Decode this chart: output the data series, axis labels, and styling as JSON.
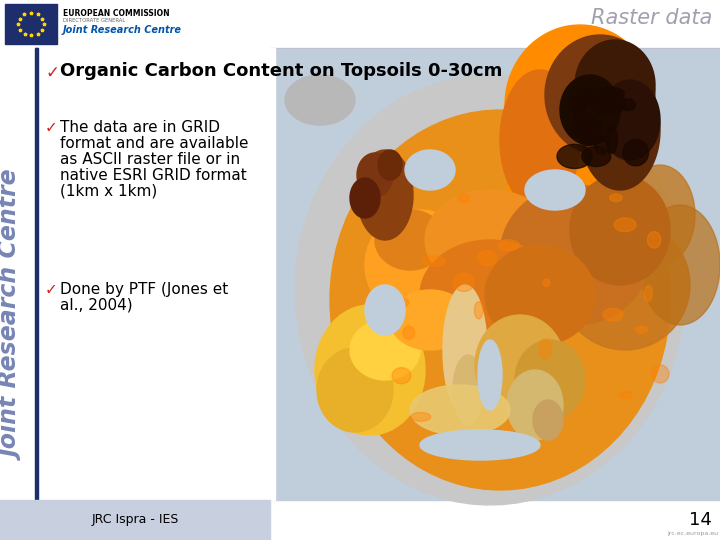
{
  "title": "Raster data",
  "title_color": "#A0A0B0",
  "title_fontsize": 15,
  "bg_color": "#FFFFFF",
  "header_title": "Organic Carbon Content on Topsoils 0-30cm",
  "header_fontsize": 13,
  "bullet1_lines": [
    "The data are in GRID",
    "format and are available",
    "as ASCII raster file or in",
    "native ESRI GRID format",
    "(1km x 1km)"
  ],
  "bullet2_lines": [
    "Done by PTF (Jones et",
    "al., 2004)"
  ],
  "footer_text": "JRC Ispra - IES",
  "footer_bg": "#C8D0E0",
  "page_number": "14",
  "sidebar_text": "Joint Research Centre",
  "sidebar_text_color": "#6070A8",
  "bullet_color": "#CC2222",
  "bullet_fontsize": 11,
  "text_color": "#000000",
  "vertical_line_color": "#1E2D6B",
  "eu_blue": "#1E2D6B",
  "jrc_blue": "#0055AA",
  "map_sea_color": "#C0CEDC",
  "map_bg_color": "#C8D4E0"
}
